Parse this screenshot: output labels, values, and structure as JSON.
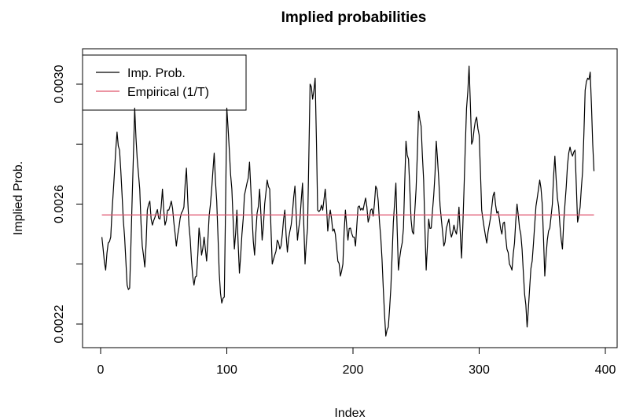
{
  "chart_data": {
    "type": "line",
    "title": "Implied probabilities",
    "xlabel": "Index",
    "ylabel": "Implied Prob.",
    "xlim": [
      0,
      400
    ],
    "ylim": [
      0.00215,
      0.00308
    ],
    "x_ticks": [
      0,
      100,
      200,
      300,
      400
    ],
    "x_tick_labels": [
      "0",
      "100",
      "200",
      "300",
      "400"
    ],
    "y_ticks": [
      0.0022,
      0.0026,
      0.003
    ],
    "y_tick_labels": [
      "0.0022",
      "0.0026",
      "0.0030"
    ],
    "grid": false,
    "legend_position": "top-left",
    "series": [
      {
        "name": "Imp. Prob.",
        "color": "#000000",
        "x_start": 1,
        "x_end": 391,
        "key_points": [
          [
            1,
            0.00249
          ],
          [
            4,
            0.00238
          ],
          [
            6,
            0.00247
          ],
          [
            8,
            0.00249
          ],
          [
            10,
            0.00264
          ],
          [
            13,
            0.00284
          ],
          [
            15,
            0.00278
          ],
          [
            17,
            0.00263
          ],
          [
            19,
            0.00249
          ],
          [
            21,
            0.00233
          ],
          [
            23,
            0.00232
          ],
          [
            25,
            0.00262
          ],
          [
            27,
            0.00292
          ],
          [
            29,
            0.00275
          ],
          [
            31,
            0.00265
          ],
          [
            33,
            0.00246
          ],
          [
            35,
            0.00239
          ],
          [
            37,
            0.00258
          ],
          [
            39,
            0.00261
          ],
          [
            41,
            0.00253
          ],
          [
            44,
            0.00257
          ],
          [
            47,
            0.00255
          ],
          [
            49,
            0.00265
          ],
          [
            51,
            0.00253
          ],
          [
            54,
            0.00258
          ],
          [
            56,
            0.00261
          ],
          [
            58,
            0.00254
          ],
          [
            60,
            0.00246
          ],
          [
            62,
            0.00252
          ],
          [
            64,
            0.00257
          ],
          [
            66,
            0.00259
          ],
          [
            68,
            0.00272
          ],
          [
            70,
            0.00253
          ],
          [
            72,
            0.00241
          ],
          [
            74,
            0.00233
          ],
          [
            76,
            0.00236
          ],
          [
            78,
            0.00252
          ],
          [
            80,
            0.00243
          ],
          [
            82,
            0.00249
          ],
          [
            84,
            0.00241
          ],
          [
            86,
            0.00256
          ],
          [
            88,
            0.00265
          ],
          [
            90,
            0.00277
          ],
          [
            92,
            0.00261
          ],
          [
            94,
            0.00237
          ],
          [
            96,
            0.00227
          ],
          [
            98,
            0.00229
          ],
          [
            100,
            0.00292
          ],
          [
            102,
            0.00278
          ],
          [
            104,
            0.00265
          ],
          [
            106,
            0.00245
          ],
          [
            108,
            0.00258
          ],
          [
            110,
            0.00237
          ],
          [
            112,
            0.0025
          ],
          [
            114,
            0.00263
          ],
          [
            116,
            0.00267
          ],
          [
            118,
            0.00274
          ],
          [
            120,
            0.00256
          ],
          [
            122,
            0.00243
          ],
          [
            124,
            0.00257
          ],
          [
            126,
            0.00265
          ],
          [
            128,
            0.00248
          ],
          [
            130,
            0.0026
          ],
          [
            132,
            0.00268
          ],
          [
            134,
            0.00265
          ],
          [
            136,
            0.0024
          ],
          [
            138,
            0.00243
          ],
          [
            140,
            0.00248
          ],
          [
            142,
            0.00245
          ],
          [
            144,
            0.0025
          ],
          [
            146,
            0.00258
          ],
          [
            148,
            0.00244
          ],
          [
            150,
            0.00251
          ],
          [
            152,
            0.00257
          ],
          [
            154,
            0.00266
          ],
          [
            156,
            0.00248
          ],
          [
            158,
            0.00255
          ],
          [
            160,
            0.00267
          ],
          [
            162,
            0.0024
          ],
          [
            164,
            0.00252
          ],
          [
            166,
            0.003
          ],
          [
            168,
            0.00295
          ],
          [
            170,
            0.00302
          ],
          [
            172,
            0.00258
          ],
          [
            174,
            0.00258
          ],
          [
            176,
            0.00258
          ],
          [
            178,
            0.00265
          ],
          [
            180,
            0.00251
          ],
          [
            182,
            0.00258
          ],
          [
            184,
            0.00251
          ],
          [
            186,
            0.0025
          ],
          [
            188,
            0.00241
          ],
          [
            190,
            0.00236
          ],
          [
            192,
            0.0024
          ],
          [
            194,
            0.00258
          ],
          [
            196,
            0.00248
          ],
          [
            198,
            0.00252
          ],
          [
            200,
            0.00249
          ],
          [
            202,
            0.00246
          ],
          [
            204,
            0.00259
          ],
          [
            206,
            0.00258
          ],
          [
            208,
            0.00258
          ],
          [
            210,
            0.00262
          ],
          [
            212,
            0.00254
          ],
          [
            214,
            0.00258
          ],
          [
            216,
            0.00256
          ],
          [
            218,
            0.00266
          ],
          [
            220,
            0.00261
          ],
          [
            222,
            0.00249
          ],
          [
            224,
            0.00232
          ],
          [
            226,
            0.00216
          ],
          [
            228,
            0.00219
          ],
          [
            230,
            0.00232
          ],
          [
            232,
            0.00254
          ],
          [
            234,
            0.00267
          ],
          [
            236,
            0.00238
          ],
          [
            238,
            0.00245
          ],
          [
            240,
            0.00252
          ],
          [
            242,
            0.00281
          ],
          [
            244,
            0.00275
          ],
          [
            246,
            0.00255
          ],
          [
            248,
            0.0025
          ],
          [
            250,
            0.00265
          ],
          [
            252,
            0.00291
          ],
          [
            254,
            0.00286
          ],
          [
            256,
            0.00268
          ],
          [
            258,
            0.00238
          ],
          [
            260,
            0.00255
          ],
          [
            262,
            0.00252
          ],
          [
            264,
            0.00263
          ],
          [
            266,
            0.00281
          ],
          [
            268,
            0.00268
          ],
          [
            270,
            0.00255
          ],
          [
            272,
            0.00246
          ],
          [
            274,
            0.00252
          ],
          [
            276,
            0.00255
          ],
          [
            278,
            0.00249
          ],
          [
            280,
            0.00253
          ],
          [
            282,
            0.0025
          ],
          [
            284,
            0.00259
          ],
          [
            286,
            0.00242
          ],
          [
            288,
            0.00265
          ],
          [
            290,
            0.00292
          ],
          [
            292,
            0.00306
          ],
          [
            294,
            0.0028
          ],
          [
            296,
            0.00285
          ],
          [
            298,
            0.00289
          ],
          [
            300,
            0.00283
          ],
          [
            302,
            0.00258
          ],
          [
            304,
            0.00252
          ],
          [
            306,
            0.00247
          ],
          [
            308,
            0.00253
          ],
          [
            310,
            0.00259
          ],
          [
            312,
            0.00264
          ],
          [
            314,
            0.00257
          ],
          [
            316,
            0.00255
          ],
          [
            318,
            0.0025
          ],
          [
            320,
            0.00254
          ],
          [
            322,
            0.00245
          ],
          [
            324,
            0.0024
          ],
          [
            326,
            0.00238
          ],
          [
            328,
            0.00247
          ],
          [
            330,
            0.0026
          ],
          [
            332,
            0.00252
          ],
          [
            334,
            0.00245
          ],
          [
            336,
            0.0023
          ],
          [
            338,
            0.00219
          ],
          [
            340,
            0.00232
          ],
          [
            342,
            0.00241
          ],
          [
            344,
            0.00253
          ],
          [
            346,
            0.00262
          ],
          [
            348,
            0.00268
          ],
          [
            350,
            0.0026
          ],
          [
            352,
            0.00236
          ],
          [
            354,
            0.00248
          ],
          [
            356,
            0.00252
          ],
          [
            358,
            0.0026
          ],
          [
            360,
            0.00276
          ],
          [
            362,
            0.00262
          ],
          [
            364,
            0.00253
          ],
          [
            366,
            0.00245
          ],
          [
            368,
            0.0026
          ],
          [
            370,
            0.00273
          ],
          [
            372,
            0.00279
          ],
          [
            374,
            0.00276
          ],
          [
            376,
            0.00278
          ],
          [
            378,
            0.00254
          ],
          [
            380,
            0.00259
          ],
          [
            382,
            0.00271
          ],
          [
            384,
            0.00298
          ],
          [
            386,
            0.00302
          ],
          [
            388,
            0.00304
          ],
          [
            390,
            0.0028
          ],
          [
            391,
            0.00271
          ]
        ]
      },
      {
        "name": "Empirical (1/T)",
        "color": "#DF536B",
        "x": [
          1,
          391
        ],
        "y": [
          0.002564,
          0.002564
        ]
      }
    ]
  }
}
